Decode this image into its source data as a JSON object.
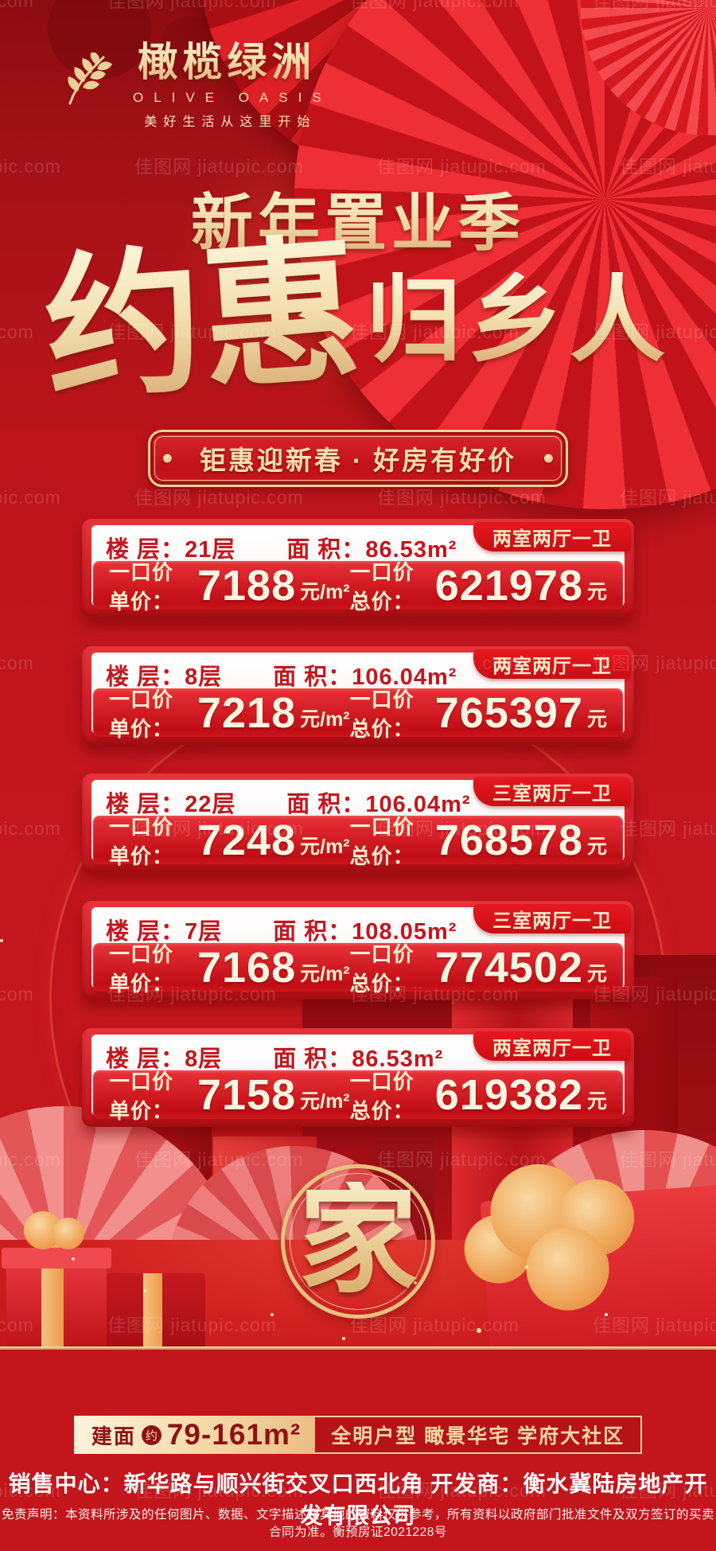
{
  "watermark": {
    "text": "佳图网 jiatupic.com"
  },
  "logo": {
    "name": "橄榄绿洲",
    "name_en": "OLIVE OASIS",
    "slogan": "美好生活从这里开始"
  },
  "hero": {
    "season_title": "新年置业季",
    "main_title_big": "约惠",
    "main_title_rest": "归乡人",
    "banner": "钜惠迎新春 · 好房有好价"
  },
  "cards": [
    {
      "tag": "两室两厅一卫",
      "floor_label": "楼 层：",
      "floor": "21层",
      "area_label": "面 积：",
      "area": "86.53m²",
      "unit_price_label": "一口价单价：",
      "unit_price": "7188",
      "unit_price_unit": "元/m²",
      "total_price_label": "一口价总价：",
      "total_price": "621978",
      "total_price_unit": "元"
    },
    {
      "tag": "两室两厅一卫",
      "floor_label": "楼 层：",
      "floor": "8层",
      "area_label": "面 积：",
      "area": "106.04m²",
      "unit_price_label": "一口价单价：",
      "unit_price": "7218",
      "unit_price_unit": "元/m²",
      "total_price_label": "一口价总价：",
      "total_price": "765397",
      "total_price_unit": "元"
    },
    {
      "tag": "三室两厅一卫",
      "floor_label": "楼 层：",
      "floor": "22层",
      "area_label": "面 积：",
      "area": "106.04m²",
      "unit_price_label": "一口价单价：",
      "unit_price": "7248",
      "unit_price_unit": "元/m²",
      "total_price_label": "一口价总价：",
      "total_price": "768578",
      "total_price_unit": "元"
    },
    {
      "tag": "三室两厅一卫",
      "floor_label": "楼 层：",
      "floor": "7层",
      "area_label": "面 积：",
      "area": "108.05m²",
      "unit_price_label": "一口价单价：",
      "unit_price": "7168",
      "unit_price_unit": "元/m²",
      "total_price_label": "一口价总价：",
      "total_price": "774502",
      "total_price_unit": "元"
    },
    {
      "tag": "两室两厅一卫",
      "floor_label": "楼 层：",
      "floor": "8层",
      "area_label": "面 积：",
      "area": "86.53m²",
      "unit_price_label": "一口价单价：",
      "unit_price": "7158",
      "unit_price_unit": "元/m²",
      "total_price_label": "一口价总价：",
      "total_price": "619382",
      "total_price_unit": "元"
    }
  ],
  "home_badge": {
    "character": "家"
  },
  "footer": {
    "area_label": "建面",
    "area_about": "约",
    "area_range": "79-161m²",
    "selling_points": "全明户型 瞰景华宅 学府大社区",
    "sales_line": "销售中心：新华路与顺兴街交叉口西北角  开发商：衡水冀陆房地产开发有限公司",
    "disclaimer": "免责声明：本资料所涉及的任何图片、数据、文字描述及其他的资料仅供参考，所有资料以政府部门批准文件及双方签订的买卖合同为准。衡预房证2021228号"
  },
  "colors": {
    "bg_red": "#c4161d",
    "card_red": "#d8242b",
    "gold": "#f3d9a5",
    "cream": "#f8edd3",
    "dark_red_text": "#c2171d"
  }
}
